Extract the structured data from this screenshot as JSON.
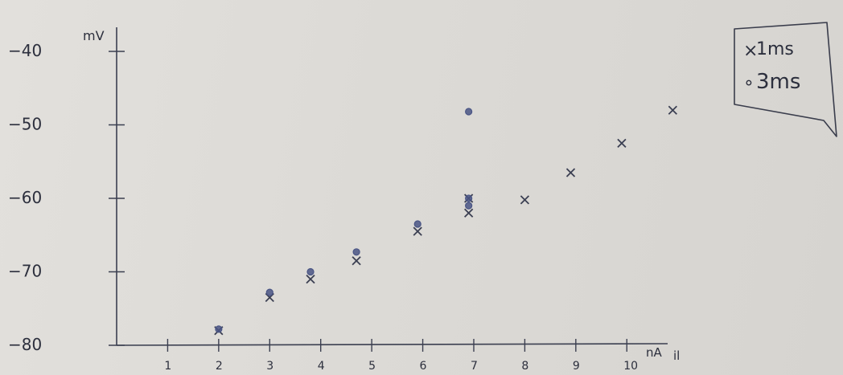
{
  "chart_data": {
    "type": "scatter",
    "title": "",
    "xlabel": "nA",
    "x_suffix": "il",
    "ylabel": "mV",
    "xlim": [
      0,
      10.8
    ],
    "ylim": [
      -80,
      -40
    ],
    "x_ticks": [
      {
        "value": 1,
        "label": "1"
      },
      {
        "value": 2,
        "label": "2"
      },
      {
        "value": 3,
        "label": "3"
      },
      {
        "value": 4,
        "label": "4"
      },
      {
        "value": 5,
        "label": "5"
      },
      {
        "value": 6,
        "label": "6"
      },
      {
        "value": 7,
        "label": "7"
      },
      {
        "value": 8,
        "label": "8"
      },
      {
        "value": 9,
        "label": "9"
      },
      {
        "value": 10,
        "label": "10"
      }
    ],
    "y_ticks": [
      {
        "value": -40,
        "label": "−40"
      },
      {
        "value": -50,
        "label": "−50"
      },
      {
        "value": -60,
        "label": "−60"
      },
      {
        "value": -70,
        "label": "−70"
      },
      {
        "value": -80,
        "label": "−80"
      }
    ],
    "grid": false,
    "legend": {
      "placement": "top-right",
      "entries": [
        {
          "marker": "×",
          "label": "1ms"
        },
        {
          "marker": "∘",
          "label": "3ms"
        }
      ]
    },
    "series": [
      {
        "name": "1ms",
        "marker": "x",
        "color": "#3b3f52",
        "x": [
          2,
          3,
          3.8,
          4.7,
          5.9,
          6.9,
          6.9,
          8,
          8.9,
          9.9,
          10.9
        ],
        "y": [
          -78,
          -73.5,
          -71,
          -68.5,
          -64.5,
          -60,
          -62,
          -60.2,
          -56.5,
          -52.5,
          -48
        ]
      },
      {
        "name": "3ms",
        "marker": "o",
        "color": "#4a5585",
        "x": [
          2,
          3,
          3.8,
          4.7,
          5.9,
          6.9,
          6.9,
          6.9
        ],
        "y": [
          -77.8,
          -72.8,
          -70,
          -67.3,
          -63.5,
          -60,
          -61,
          -48.2
        ]
      }
    ]
  }
}
